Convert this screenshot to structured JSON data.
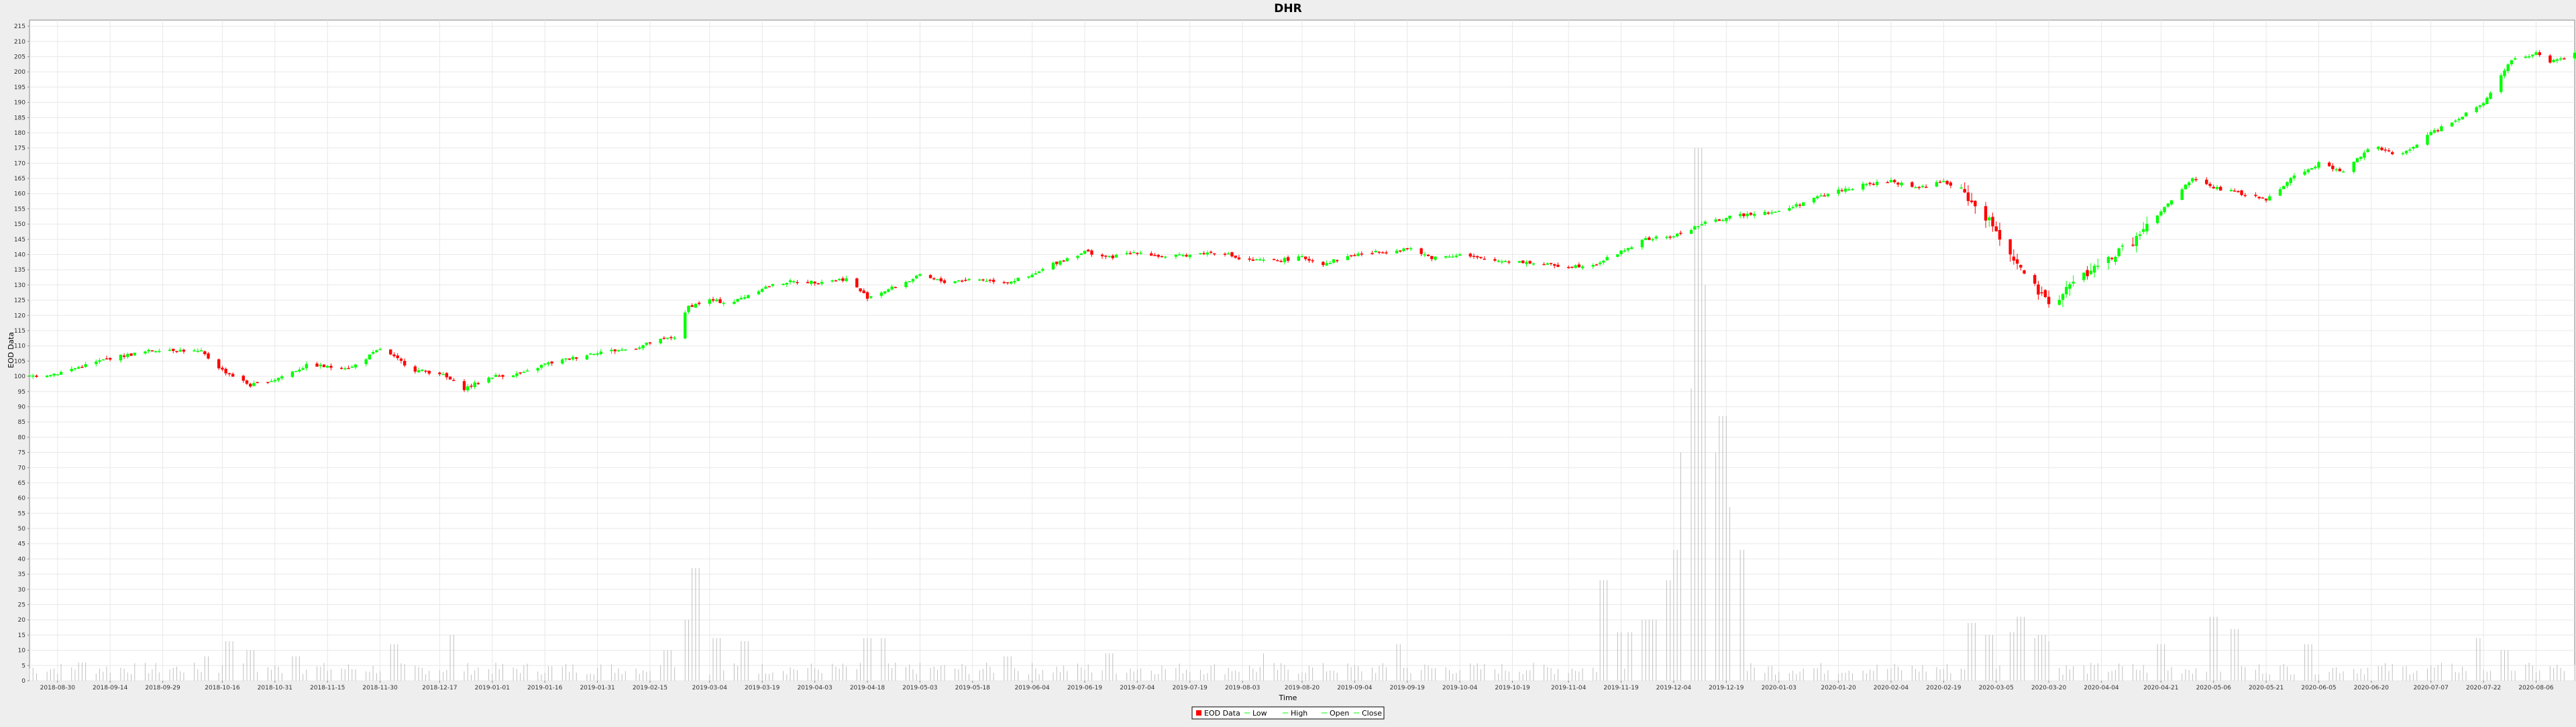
{
  "chart_data": {
    "type": "candlestick",
    "title": "DHR",
    "xlabel": "Time",
    "ylabel": "EOD Data",
    "ylim": [
      0,
      217
    ],
    "y_ticks": [
      0,
      5,
      10,
      15,
      20,
      25,
      30,
      35,
      40,
      45,
      50,
      55,
      60,
      65,
      70,
      75,
      80,
      85,
      90,
      95,
      100,
      105,
      110,
      115,
      120,
      125,
      130,
      135,
      140,
      145,
      150,
      155,
      160,
      165,
      170,
      175,
      180,
      185,
      190,
      195,
      200,
      205,
      210,
      215
    ],
    "x_range": [
      "2018-08-22",
      "2020-08-17"
    ],
    "x_tick_labels": [
      "2018-08-30",
      "2018-09-14",
      "2018-09-29",
      "2018-10-16",
      "2018-10-31",
      "2018-11-15",
      "2018-11-30",
      "2018-12-17",
      "2019-01-01",
      "2019-01-16",
      "2019-01-31",
      "2019-02-15",
      "2019-03-04",
      "2019-03-19",
      "2019-04-03",
      "2019-04-18",
      "2019-05-03",
      "2019-05-18",
      "2019-06-04",
      "2019-06-19",
      "2019-07-04",
      "2019-07-19",
      "2019-08-03",
      "2019-08-20",
      "2019-09-04",
      "2019-09-19",
      "2019-10-04",
      "2019-10-19",
      "2019-11-04",
      "2019-11-19",
      "2019-12-04",
      "2019-12-19",
      "2020-01-03",
      "2020-01-20",
      "2020-02-04",
      "2020-02-19",
      "2020-03-05",
      "2020-03-20",
      "2020-04-04",
      "2020-04-21",
      "2020-05-06",
      "2020-05-21",
      "2020-06-05",
      "2020-06-20",
      "2020-07-07",
      "2020-07-22",
      "2020-08-06"
    ],
    "grid": true,
    "legend_position": "bottom-center",
    "legend": [
      "EOD Data",
      "Low",
      "High",
      "Open",
      "Close"
    ],
    "colors": {
      "up": "#00ff00",
      "down": "#ff0000",
      "volume": "#c0c0c0",
      "grid": "#e8e8e8"
    },
    "close_anchors": [
      [
        "2018-08-22",
        100
      ],
      [
        "2018-08-30",
        101
      ],
      [
        "2018-09-14",
        106
      ],
      [
        "2018-09-29",
        109
      ],
      [
        "2018-10-10",
        108
      ],
      [
        "2018-10-16",
        102
      ],
      [
        "2018-10-24",
        97
      ],
      [
        "2018-10-31",
        99
      ],
      [
        "2018-11-10",
        104
      ],
      [
        "2018-11-15",
        103
      ],
      [
        "2018-11-22",
        103
      ],
      [
        "2018-11-30",
        109
      ],
      [
        "2018-12-10",
        102
      ],
      [
        "2018-12-17",
        101
      ],
      [
        "2018-12-24",
        96
      ],
      [
        "2019-01-01",
        100
      ],
      [
        "2019-01-10",
        101
      ],
      [
        "2019-01-16",
        104
      ],
      [
        "2019-01-24",
        106
      ],
      [
        "2019-01-31",
        108
      ],
      [
        "2019-02-10",
        109
      ],
      [
        "2019-02-15",
        111
      ],
      [
        "2019-02-22",
        113
      ],
      [
        "2019-02-26",
        123
      ],
      [
        "2019-03-04",
        125
      ],
      [
        "2019-03-10",
        124
      ],
      [
        "2019-03-19",
        129
      ],
      [
        "2019-03-26",
        131
      ],
      [
        "2019-04-03",
        131
      ],
      [
        "2019-04-12",
        132
      ],
      [
        "2019-04-18",
        126
      ],
      [
        "2019-04-25",
        129
      ],
      [
        "2019-05-03",
        133
      ],
      [
        "2019-05-10",
        131
      ],
      [
        "2019-05-18",
        132
      ],
      [
        "2019-05-28",
        131
      ],
      [
        "2019-06-04",
        133
      ],
      [
        "2019-06-10",
        137
      ],
      [
        "2019-06-19",
        141
      ],
      [
        "2019-06-26",
        139
      ],
      [
        "2019-07-04",
        141
      ],
      [
        "2019-07-12",
        139
      ],
      [
        "2019-07-19",
        140
      ],
      [
        "2019-07-28",
        141
      ],
      [
        "2019-08-03",
        138
      ],
      [
        "2019-08-12",
        138
      ],
      [
        "2019-08-20",
        139
      ],
      [
        "2019-08-26",
        137
      ],
      [
        "2019-09-04",
        140
      ],
      [
        "2019-09-12",
        141
      ],
      [
        "2019-09-19",
        142
      ],
      [
        "2019-09-26",
        139
      ],
      [
        "2019-10-04",
        140
      ],
      [
        "2019-10-12",
        138
      ],
      [
        "2019-10-19",
        138
      ],
      [
        "2019-10-26",
        137
      ],
      [
        "2019-11-04",
        136
      ],
      [
        "2019-11-12",
        137
      ],
      [
        "2019-11-19",
        141
      ],
      [
        "2019-11-26",
        145
      ],
      [
        "2019-12-04",
        146
      ],
      [
        "2019-12-12",
        150
      ],
      [
        "2019-12-19",
        152
      ],
      [
        "2019-12-28",
        154
      ],
      [
        "2020-01-03",
        154
      ],
      [
        "2020-01-12",
        158
      ],
      [
        "2020-01-20",
        161
      ],
      [
        "2020-01-28",
        163
      ],
      [
        "2020-02-04",
        164
      ],
      [
        "2020-02-12",
        162
      ],
      [
        "2020-02-19",
        164
      ],
      [
        "2020-02-25",
        160
      ],
      [
        "2020-03-05",
        148
      ],
      [
        "2020-03-12",
        135
      ],
      [
        "2020-03-20",
        123
      ],
      [
        "2020-03-26",
        130
      ],
      [
        "2020-04-04",
        137
      ],
      [
        "2020-04-12",
        143
      ],
      [
        "2020-04-21",
        154
      ],
      [
        "2020-04-30",
        165
      ],
      [
        "2020-05-06",
        162
      ],
      [
        "2020-05-14",
        160
      ],
      [
        "2020-05-21",
        158
      ],
      [
        "2020-05-28",
        165
      ],
      [
        "2020-06-05",
        170
      ],
      [
        "2020-06-12",
        167
      ],
      [
        "2020-06-20",
        176
      ],
      [
        "2020-06-28",
        172
      ],
      [
        "2020-07-07",
        180
      ],
      [
        "2020-07-15",
        185
      ],
      [
        "2020-07-22",
        190
      ],
      [
        "2020-07-30",
        204
      ],
      [
        "2020-08-06",
        206
      ],
      [
        "2020-08-10",
        203
      ],
      [
        "2020-08-17",
        206
      ]
    ],
    "volume_spikes": [
      [
        "2018-09-06",
        6
      ],
      [
        "2018-10-12",
        8
      ],
      [
        "2018-10-18",
        13
      ],
      [
        "2018-10-24",
        10
      ],
      [
        "2018-11-06",
        8
      ],
      [
        "2018-12-04",
        12
      ],
      [
        "2018-12-21",
        15
      ],
      [
        "2019-02-20",
        10
      ],
      [
        "2019-02-26",
        20
      ],
      [
        "2019-02-28",
        37
      ],
      [
        "2019-03-06",
        14
      ],
      [
        "2019-03-14",
        13
      ],
      [
        "2019-04-18",
        14
      ],
      [
        "2019-04-22",
        14
      ],
      [
        "2019-05-28",
        8
      ],
      [
        "2019-06-26",
        9
      ],
      [
        "2019-08-10",
        9
      ],
      [
        "2019-09-16",
        12
      ],
      [
        "2019-11-14",
        33
      ],
      [
        "2019-11-18",
        16
      ],
      [
        "2019-11-22",
        16
      ],
      [
        "2019-11-26",
        20
      ],
      [
        "2019-11-29",
        20
      ],
      [
        "2019-12-03",
        33
      ],
      [
        "2019-12-05",
        43
      ],
      [
        "2019-12-07",
        75
      ],
      [
        "2019-12-09",
        87
      ],
      [
        "2019-12-10",
        96
      ],
      [
        "2019-12-11",
        175
      ],
      [
        "2019-12-12",
        130
      ],
      [
        "2019-12-14",
        118
      ],
      [
        "2019-12-16",
        75
      ],
      [
        "2019-12-18",
        87
      ],
      [
        "2019-12-20",
        57
      ],
      [
        "2019-12-23",
        43
      ],
      [
        "2020-02-27",
        19
      ],
      [
        "2020-03-03",
        15
      ],
      [
        "2020-03-09",
        16
      ],
      [
        "2020-03-12",
        21
      ],
      [
        "2020-03-16",
        14
      ],
      [
        "2020-03-18",
        15
      ],
      [
        "2020-03-20",
        13
      ],
      [
        "2020-04-21",
        12
      ],
      [
        "2020-05-06",
        21
      ],
      [
        "2020-05-12",
        17
      ],
      [
        "2020-06-02",
        12
      ],
      [
        "2020-07-20",
        14
      ],
      [
        "2020-07-28",
        10
      ]
    ]
  }
}
